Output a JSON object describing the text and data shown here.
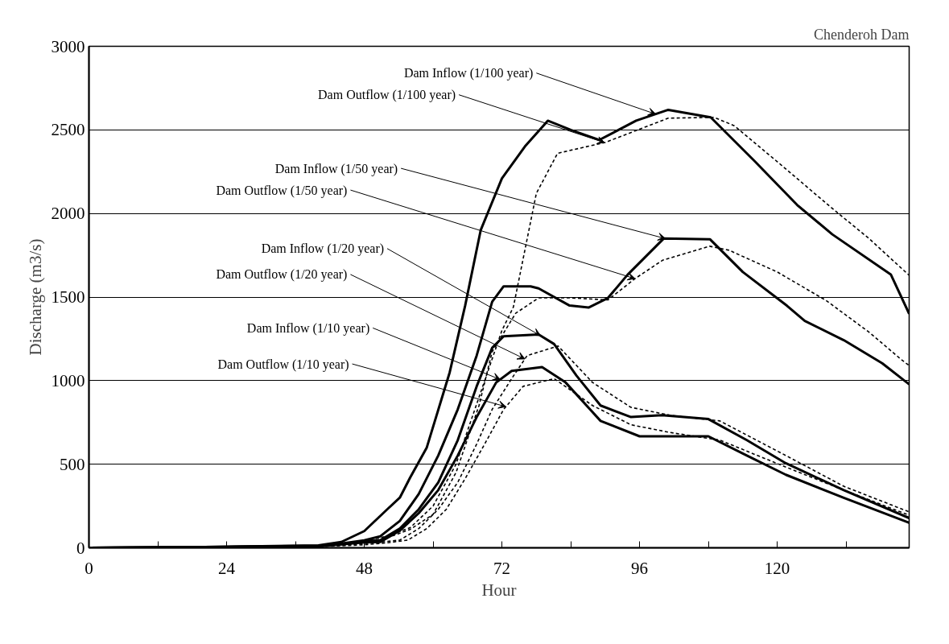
{
  "chart_data": {
    "type": "line",
    "title": "Chenderoh Dam",
    "xlabel": "Hour",
    "ylabel": "Discharge (m3/s)",
    "xlim": [
      0,
      143
    ],
    "ylim": [
      0,
      3000
    ],
    "xticks": [
      0,
      {
        "value": 12,
        "label": null
      },
      24,
      {
        "value": 36,
        "label": null
      },
      48,
      {
        "value": 60,
        "label": null
      },
      72,
      {
        "value": 84,
        "label": null
      },
      96,
      {
        "value": 108,
        "label": null
      },
      120,
      {
        "value": 132,
        "label": null
      }
    ],
    "yticks": [
      0,
      500,
      1000,
      1500,
      2000,
      2500,
      3000
    ],
    "grid": "y",
    "marker": "none",
    "series": [
      {
        "name": "Dam Inflow (1/100 year)",
        "color": "#000000",
        "line_style": "solid",
        "x": [
          0,
          20,
          40,
          44,
          48,
          52,
          54.2,
          56,
          58.9,
          62.9,
          65.6,
          68.3,
          72,
          76,
          80,
          84,
          89,
          95.4,
          101,
          108.4,
          116,
          123.5,
          129.6,
          139.8,
          143
        ],
        "values": [
          0,
          5,
          15,
          35,
          100,
          230,
          300,
          420,
          600,
          1050,
          1450,
          1900,
          2210,
          2400,
          2555,
          2500,
          2440,
          2555,
          2620,
          2575,
          2315,
          2050,
          1875,
          1635,
          1400
        ]
      },
      {
        "name": "Dam Outflow (1/100 year)",
        "color": "#000000",
        "line_style": "dashed",
        "x": [
          0,
          20,
          40,
          44,
          48,
          52,
          56,
          60,
          64,
          68,
          72,
          74,
          78,
          81.7,
          90,
          101,
          109,
          112.5,
          120,
          129.6,
          136,
          143
        ],
        "values": [
          0,
          3,
          10,
          20,
          40,
          70,
          120,
          250,
          500,
          900,
          1300,
          1440,
          2120,
          2360,
          2425,
          2570,
          2575,
          2525,
          2310,
          2030,
          1850,
          1630
        ]
      },
      {
        "name": "Dam Inflow (1/50 year)",
        "color": "#000000",
        "line_style": "solid",
        "x": [
          0,
          20,
          40,
          44,
          48,
          50.8,
          54.2,
          57.5,
          60.9,
          64.3,
          67.6,
          70.3,
          72.3,
          77,
          78.4,
          83.8,
          87.1,
          90.5,
          93.9,
          100.2,
          108.3,
          114,
          121.7,
          124.8,
          131.6,
          138.3,
          143
        ],
        "values": [
          0,
          5,
          12,
          25,
          45,
          69,
          161,
          322,
          552,
          828,
          1150,
          1472,
          1564,
          1564,
          1552,
          1449,
          1437,
          1495,
          1633,
          1850,
          1845,
          1650,
          1448,
          1357,
          1242,
          1104,
          978
        ]
      },
      {
        "name": "Dam Outflow (1/50 year)",
        "color": "#000000",
        "line_style": "dashed",
        "x": [
          0,
          20,
          40,
          44,
          48,
          52,
          56,
          60,
          64,
          68,
          70.3,
          74.4,
          78.4,
          83.8,
          90.5,
          95.2,
          100,
          108.2,
          111.6,
          120,
          128.5,
          136,
          141.6,
          143
        ],
        "values": [
          0,
          3,
          10,
          18,
          30,
          60,
          110,
          200,
          450,
          850,
          1173,
          1403,
          1495,
          1495,
          1483,
          1610,
          1720,
          1804,
          1780,
          1650,
          1480,
          1290,
          1127,
          1090
        ]
      },
      {
        "name": "Dam Inflow (1/20 year)",
        "color": "#000000",
        "line_style": "solid",
        "x": [
          0,
          20,
          40,
          44,
          48,
          50.8,
          54.2,
          57.5,
          60.9,
          64.3,
          67.6,
          70.3,
          72.3,
          78.4,
          81.1,
          85,
          89.2,
          94.5,
          99.9,
          108,
          114.7,
          121.5,
          131.6,
          143
        ],
        "values": [
          0,
          4,
          10,
          22,
          38,
          46,
          115,
          230,
          391,
          644,
          966,
          1196,
          1265,
          1276,
          1219,
          1030,
          851,
          782,
          793,
          770,
          644,
          506,
          345,
          178
        ]
      },
      {
        "name": "Dam Outflow (1/20 year)",
        "color": "#000000",
        "line_style": "dashed",
        "x": [
          0,
          20,
          40,
          44,
          48,
          54.2,
          57.5,
          60.9,
          64.3,
          67.6,
          70.3,
          73.7,
          76.4,
          81.8,
          87.8,
          94.5,
          101.3,
          110,
          121.5,
          131.6,
          143
        ],
        "values": [
          0,
          3,
          8,
          15,
          25,
          46,
          115,
          230,
          391,
          621,
          828,
          1012,
          1150,
          1207,
          989,
          840,
          793,
          759,
          552,
          368,
          215
        ]
      },
      {
        "name": "Dam Inflow (1/10 year)",
        "color": "#000000",
        "line_style": "solid",
        "x": [
          0,
          20,
          40,
          44,
          48,
          50.8,
          54.2,
          57.5,
          60.9,
          64.3,
          67.6,
          71,
          73.7,
          79,
          83.1,
          89.2,
          96,
          108,
          114.7,
          121.5,
          131.6,
          143
        ],
        "values": [
          0,
          4,
          10,
          20,
          32,
          35,
          103,
          207,
          345,
          552,
          782,
          989,
          1058,
          1081,
          989,
          759,
          667,
          667,
          552,
          437,
          299,
          150
        ]
      },
      {
        "name": "Dam Outflow (1/10 year)",
        "color": "#000000",
        "line_style": "dashed",
        "x": [
          0,
          20,
          40,
          44,
          48,
          52,
          55.6,
          58.9,
          62.3,
          65.6,
          69,
          72.3,
          75.7,
          81.1,
          87.8,
          94.5,
          101.3,
          110,
          121.5,
          131.6,
          143
        ],
        "values": [
          0,
          3,
          8,
          12,
          18,
          30,
          46,
          115,
          230,
          414,
          621,
          828,
          966,
          1012,
          851,
          736,
          690,
          644,
          483,
          345,
          195
        ]
      }
    ]
  }
}
